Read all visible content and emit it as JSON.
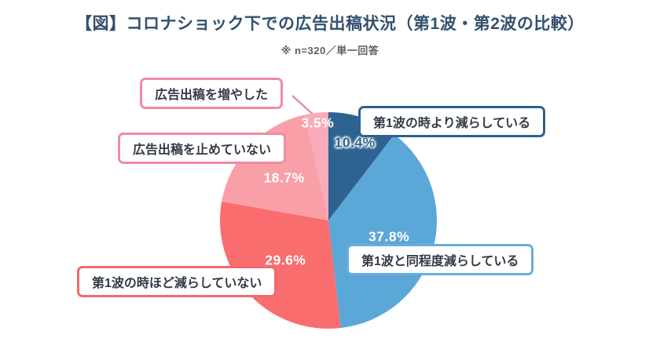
{
  "title": "【図】コロナショック下での広告出稿状況（第1波・第2波の比較）",
  "subtitle": "※ n=320／単一回答",
  "chart_data": {
    "type": "pie",
    "title": "コロナショック下での広告出稿状況（第1波・第2波の比較）",
    "note": "n=320／単一回答",
    "start_angle_deg": 0,
    "direction": "clockwise",
    "leader_line_color": "#f18ba1",
    "segments": [
      {
        "label": "第1波の時より減らしている",
        "value": 10.4,
        "color": "#2e6290",
        "callout_border": "#2e6290",
        "pct_text_color": "#2e6290",
        "pct_halo": true
      },
      {
        "label": "第1波と同程度減らしている",
        "value": 37.8,
        "color": "#5ba7d7",
        "callout_border": "#68aedb",
        "pct_text_color": "#ffffff",
        "pct_halo": false
      },
      {
        "label": "第1波の時ほど減らしていない",
        "value": 29.6,
        "color": "#f96d6f",
        "callout_border": "#f4696d",
        "pct_text_color": "#ffffff",
        "pct_halo": false
      },
      {
        "label": "広告出稿を止めていない",
        "value": 18.7,
        "color": "#f99fa8",
        "callout_border": "#f18ba1",
        "pct_text_color": "#ffffff",
        "pct_halo": false
      },
      {
        "label": "広告出稿を増やした",
        "value": 3.5,
        "color": "#f8abb9",
        "callout_border": "#f18ba1",
        "pct_text_color": "#ffffff",
        "pct_halo": false
      }
    ]
  }
}
